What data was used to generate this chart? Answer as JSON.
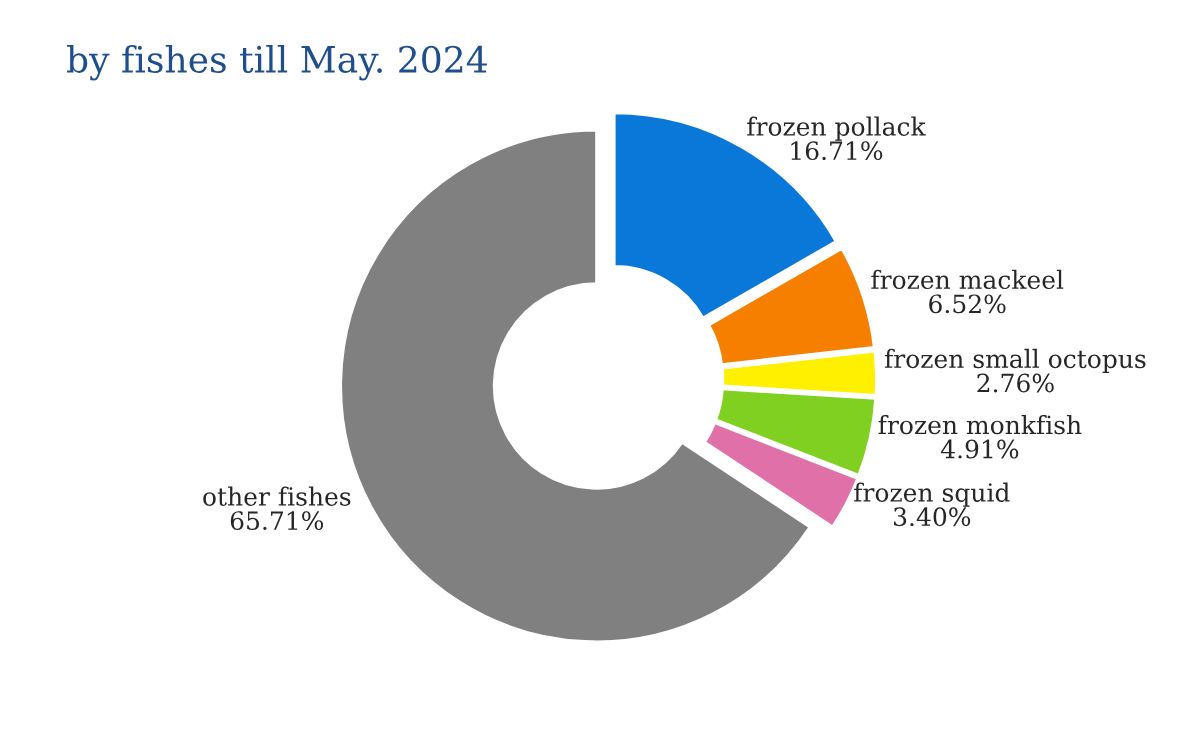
{
  "chart_data": {
    "type": "donut",
    "title": "by fishes till May. 2024",
    "categories": [
      "frozen pollack",
      "frozen mackeel",
      "frozen small octopus",
      "frozen monkfish",
      "frozen squid",
      "other fishes"
    ],
    "values": [
      16.71,
      6.52,
      2.76,
      4.91,
      3.4,
      65.71
    ],
    "colors": [
      "#0a78d8",
      "#f77f00",
      "#fff000",
      "#80d022",
      "#e070a8",
      "#808080"
    ],
    "value_labels": [
      "16.71%",
      "6.52%",
      "2.76%",
      "4.91%",
      "3.40%",
      "65.71%"
    ],
    "legend": false
  }
}
